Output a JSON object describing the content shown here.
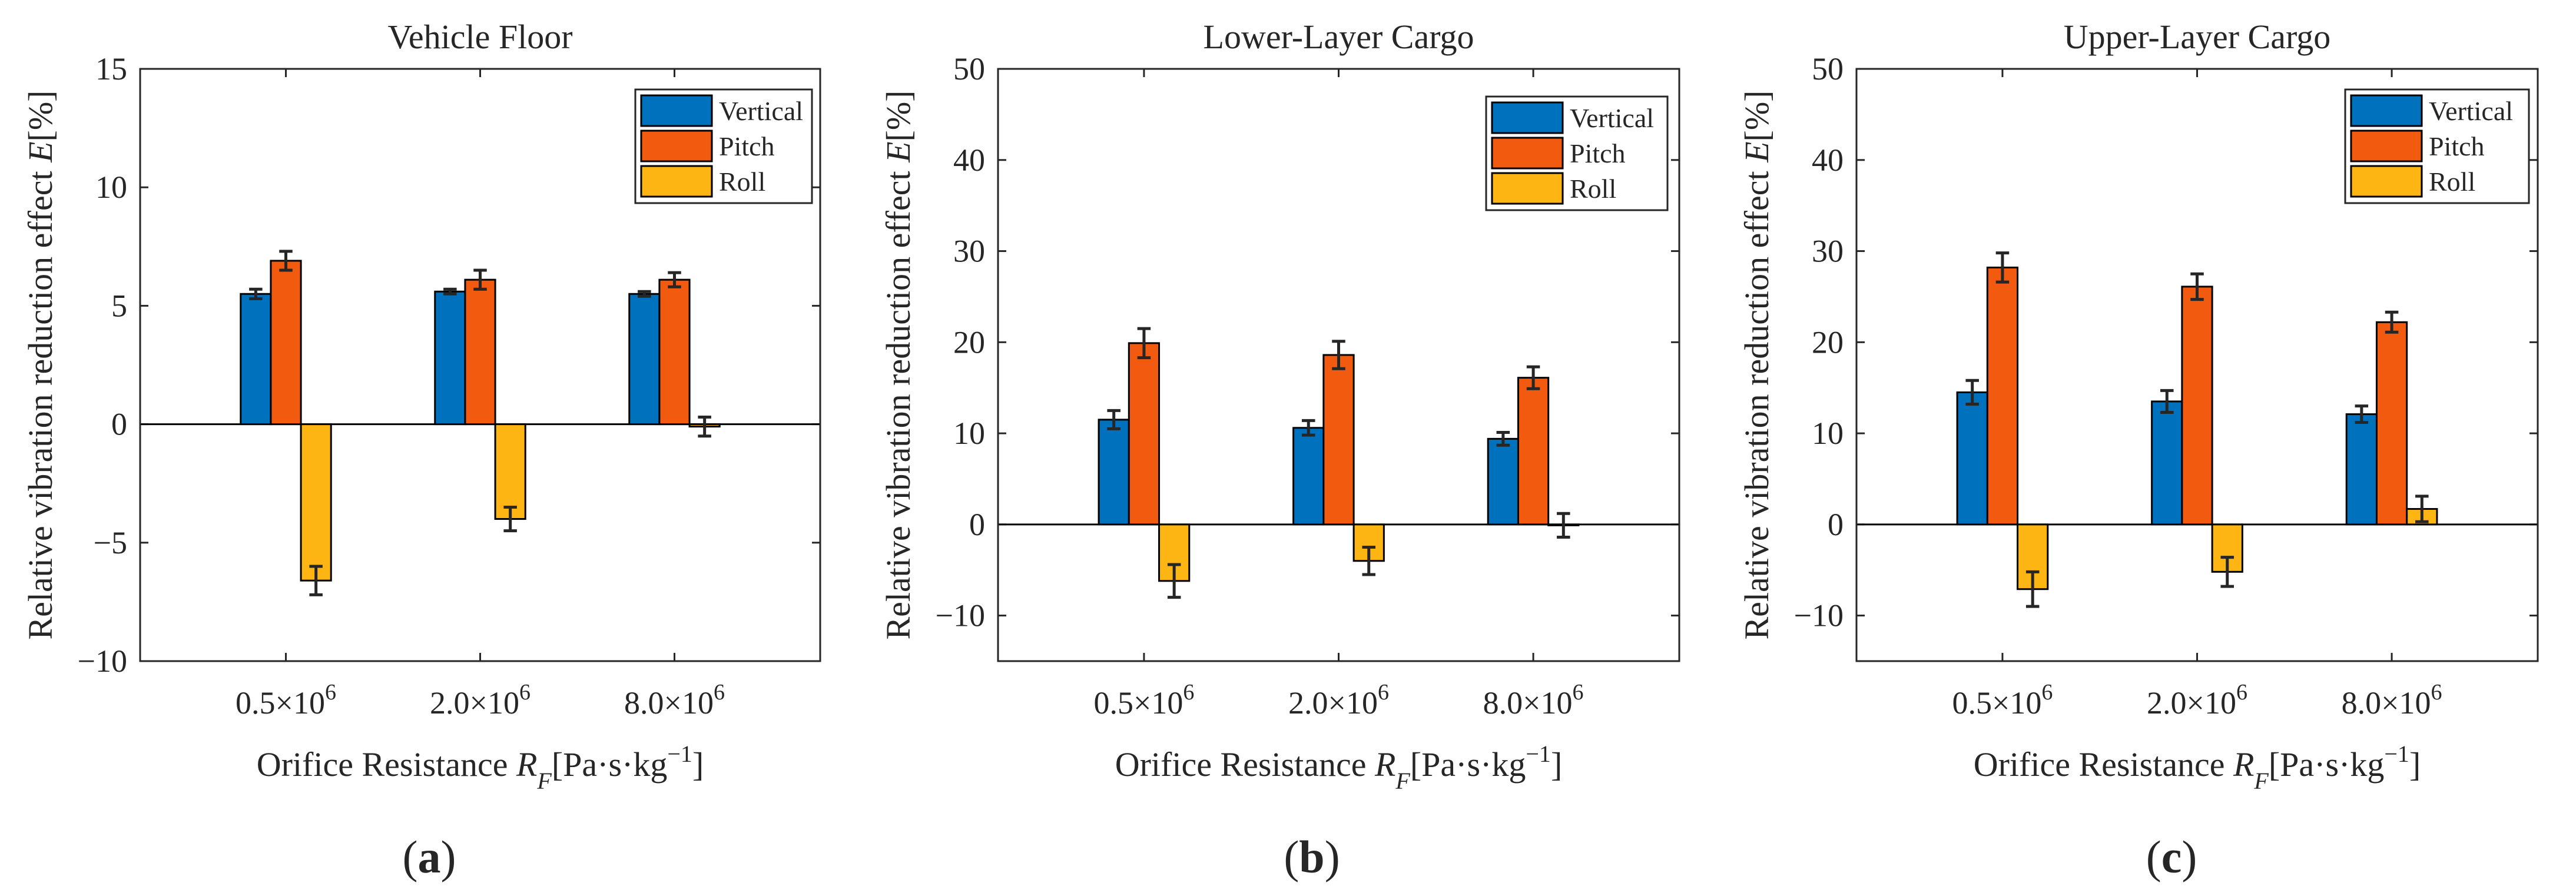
{
  "figure": {
    "panel_labels": [
      "a",
      "b",
      "c"
    ],
    "legend_entries": [
      "Vertical",
      "Pitch",
      "Roll"
    ],
    "series_colors": [
      "#0072BD",
      "#F25A0F",
      "#FDB514"
    ]
  },
  "chart_data": [
    {
      "type": "bar",
      "title": "Vehicle Floor",
      "categories": [
        "0.5×10^6",
        "2.0×10^6",
        "8.0×10^6"
      ],
      "category_mantissas": [
        "0.5×10",
        "2.0×10",
        "8.0×10"
      ],
      "category_exponent": "6",
      "xlabel": "Orifice Resistance R_F[Pa·s·kg^−1]",
      "ylabel": "Relative vibration reduction effect E[%]",
      "ylim": [
        -10,
        15
      ],
      "yticks": [
        -10,
        -5,
        0,
        5,
        10,
        15
      ],
      "legend_position": "top-right",
      "series": [
        {
          "name": "Vertical",
          "values": [
            5.5,
            5.6,
            5.5
          ],
          "errors": [
            0.2,
            0.1,
            0.1
          ]
        },
        {
          "name": "Pitch",
          "values": [
            6.9,
            6.1,
            6.1
          ],
          "errors": [
            0.4,
            0.4,
            0.3
          ]
        },
        {
          "name": "Roll",
          "values": [
            -6.6,
            -4.0,
            -0.1
          ],
          "errors": [
            0.6,
            0.5,
            0.4
          ]
        }
      ]
    },
    {
      "type": "bar",
      "title": "Lower-Layer Cargo",
      "categories": [
        "0.5×10^6",
        "2.0×10^6",
        "8.0×10^6"
      ],
      "category_mantissas": [
        "0.5×10",
        "2.0×10",
        "8.0×10"
      ],
      "category_exponent": "6",
      "xlabel": "Orifice Resistance R_F[Pa·s·kg^−1]",
      "ylabel": "Relative vibration reduction effect E[%]",
      "ylim": [
        -15,
        50
      ],
      "yticks": [
        -10,
        0,
        10,
        20,
        30,
        40,
        50
      ],
      "legend_position": "top-right",
      "series": [
        {
          "name": "Vertical",
          "values": [
            11.5,
            10.6,
            9.4
          ],
          "errors": [
            1.0,
            0.8,
            0.7
          ]
        },
        {
          "name": "Pitch",
          "values": [
            19.9,
            18.6,
            16.1
          ],
          "errors": [
            1.6,
            1.5,
            1.2
          ]
        },
        {
          "name": "Roll",
          "values": [
            -6.2,
            -4.0,
            -0.1
          ],
          "errors": [
            1.8,
            1.5,
            1.3
          ]
        }
      ]
    },
    {
      "type": "bar",
      "title": "Upper-Layer Cargo",
      "categories": [
        "0.5×10^6",
        "2.0×10^6",
        "8.0×10^6"
      ],
      "category_mantissas": [
        "0.5×10",
        "2.0×10",
        "8.0×10"
      ],
      "category_exponent": "6",
      "xlabel": "Orifice Resistance R_F[Pa·s·kg^−1]",
      "ylabel": "Relative vibration reduction effect E[%]",
      "ylim": [
        -15,
        50
      ],
      "yticks": [
        -10,
        0,
        10,
        20,
        30,
        40,
        50
      ],
      "legend_position": "top-right",
      "series": [
        {
          "name": "Vertical",
          "values": [
            14.5,
            13.5,
            12.1
          ],
          "errors": [
            1.3,
            1.2,
            0.9
          ]
        },
        {
          "name": "Pitch",
          "values": [
            28.2,
            26.1,
            22.2
          ],
          "errors": [
            1.6,
            1.4,
            1.1
          ]
        },
        {
          "name": "Roll",
          "values": [
            -7.1,
            -5.2,
            1.7
          ],
          "errors": [
            1.9,
            1.6,
            1.4
          ]
        }
      ]
    }
  ]
}
